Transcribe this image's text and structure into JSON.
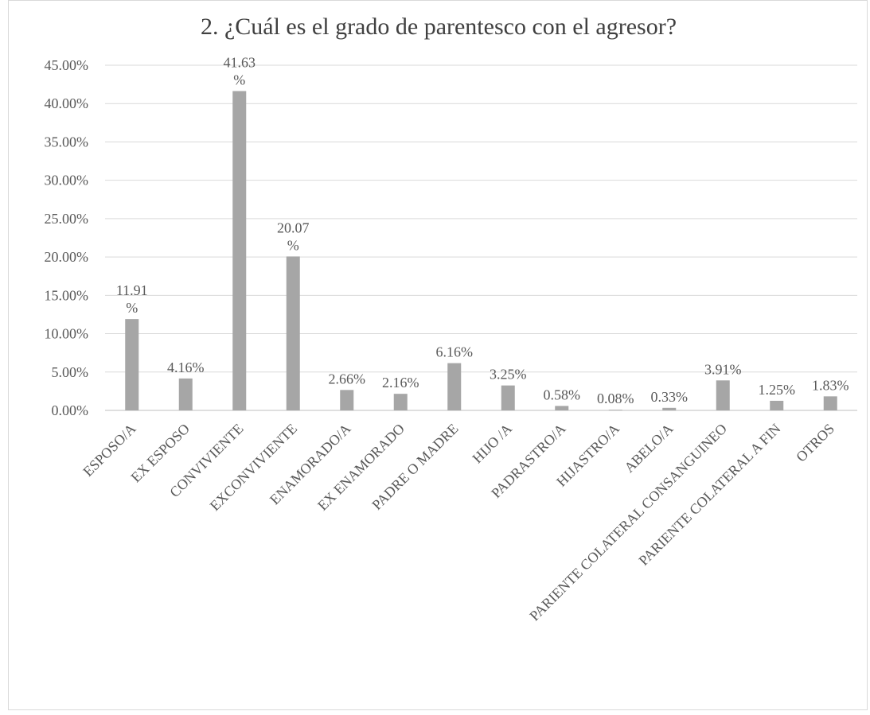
{
  "chart_data": {
    "type": "bar",
    "title": "2. ¿Cuál es el grado de parentesco con el agresor?",
    "xlabel": "",
    "ylabel": "",
    "ylim": [
      0,
      45
    ],
    "ytick_labels": [
      "0.00%",
      "5.00%",
      "10.00%",
      "15.00%",
      "20.00%",
      "25.00%",
      "30.00%",
      "35.00%",
      "40.00%",
      "45.00%"
    ],
    "grid": true,
    "legend": "none",
    "bar_color": "#a6a6a6",
    "categories": [
      "ESPOSO/A",
      "EX ESPOSO",
      "CONVIVIENTE",
      "EXCONVIVIENTE",
      "ENAMORADO/A",
      "EX ENAMORADO",
      "PADRE O MADRE",
      "HIJO /A",
      "PADRASTRO/A",
      "HIJASTRO/A",
      "ABELO/A",
      "PARIENTE COLATERAL CONSANGUINEO",
      "PARIENTE COLATERAL A FIN",
      "OTROS"
    ],
    "values": [
      11.91,
      4.16,
      41.63,
      20.07,
      2.66,
      2.16,
      6.16,
      3.25,
      0.58,
      0.08,
      0.33,
      3.91,
      1.25,
      1.83
    ],
    "data_labels": [
      [
        "11.91",
        "%"
      ],
      [
        "4.16%"
      ],
      [
        "41.63",
        "%"
      ],
      [
        "20.07",
        "%"
      ],
      [
        "2.66%"
      ],
      [
        "2.16%"
      ],
      [
        "6.16%"
      ],
      [
        "3.25%"
      ],
      [
        "0.58%"
      ],
      [
        "0.08%"
      ],
      [
        "0.33%"
      ],
      [
        "3.91%"
      ],
      [
        "1.25%"
      ],
      [
        "1.83%"
      ]
    ]
  }
}
